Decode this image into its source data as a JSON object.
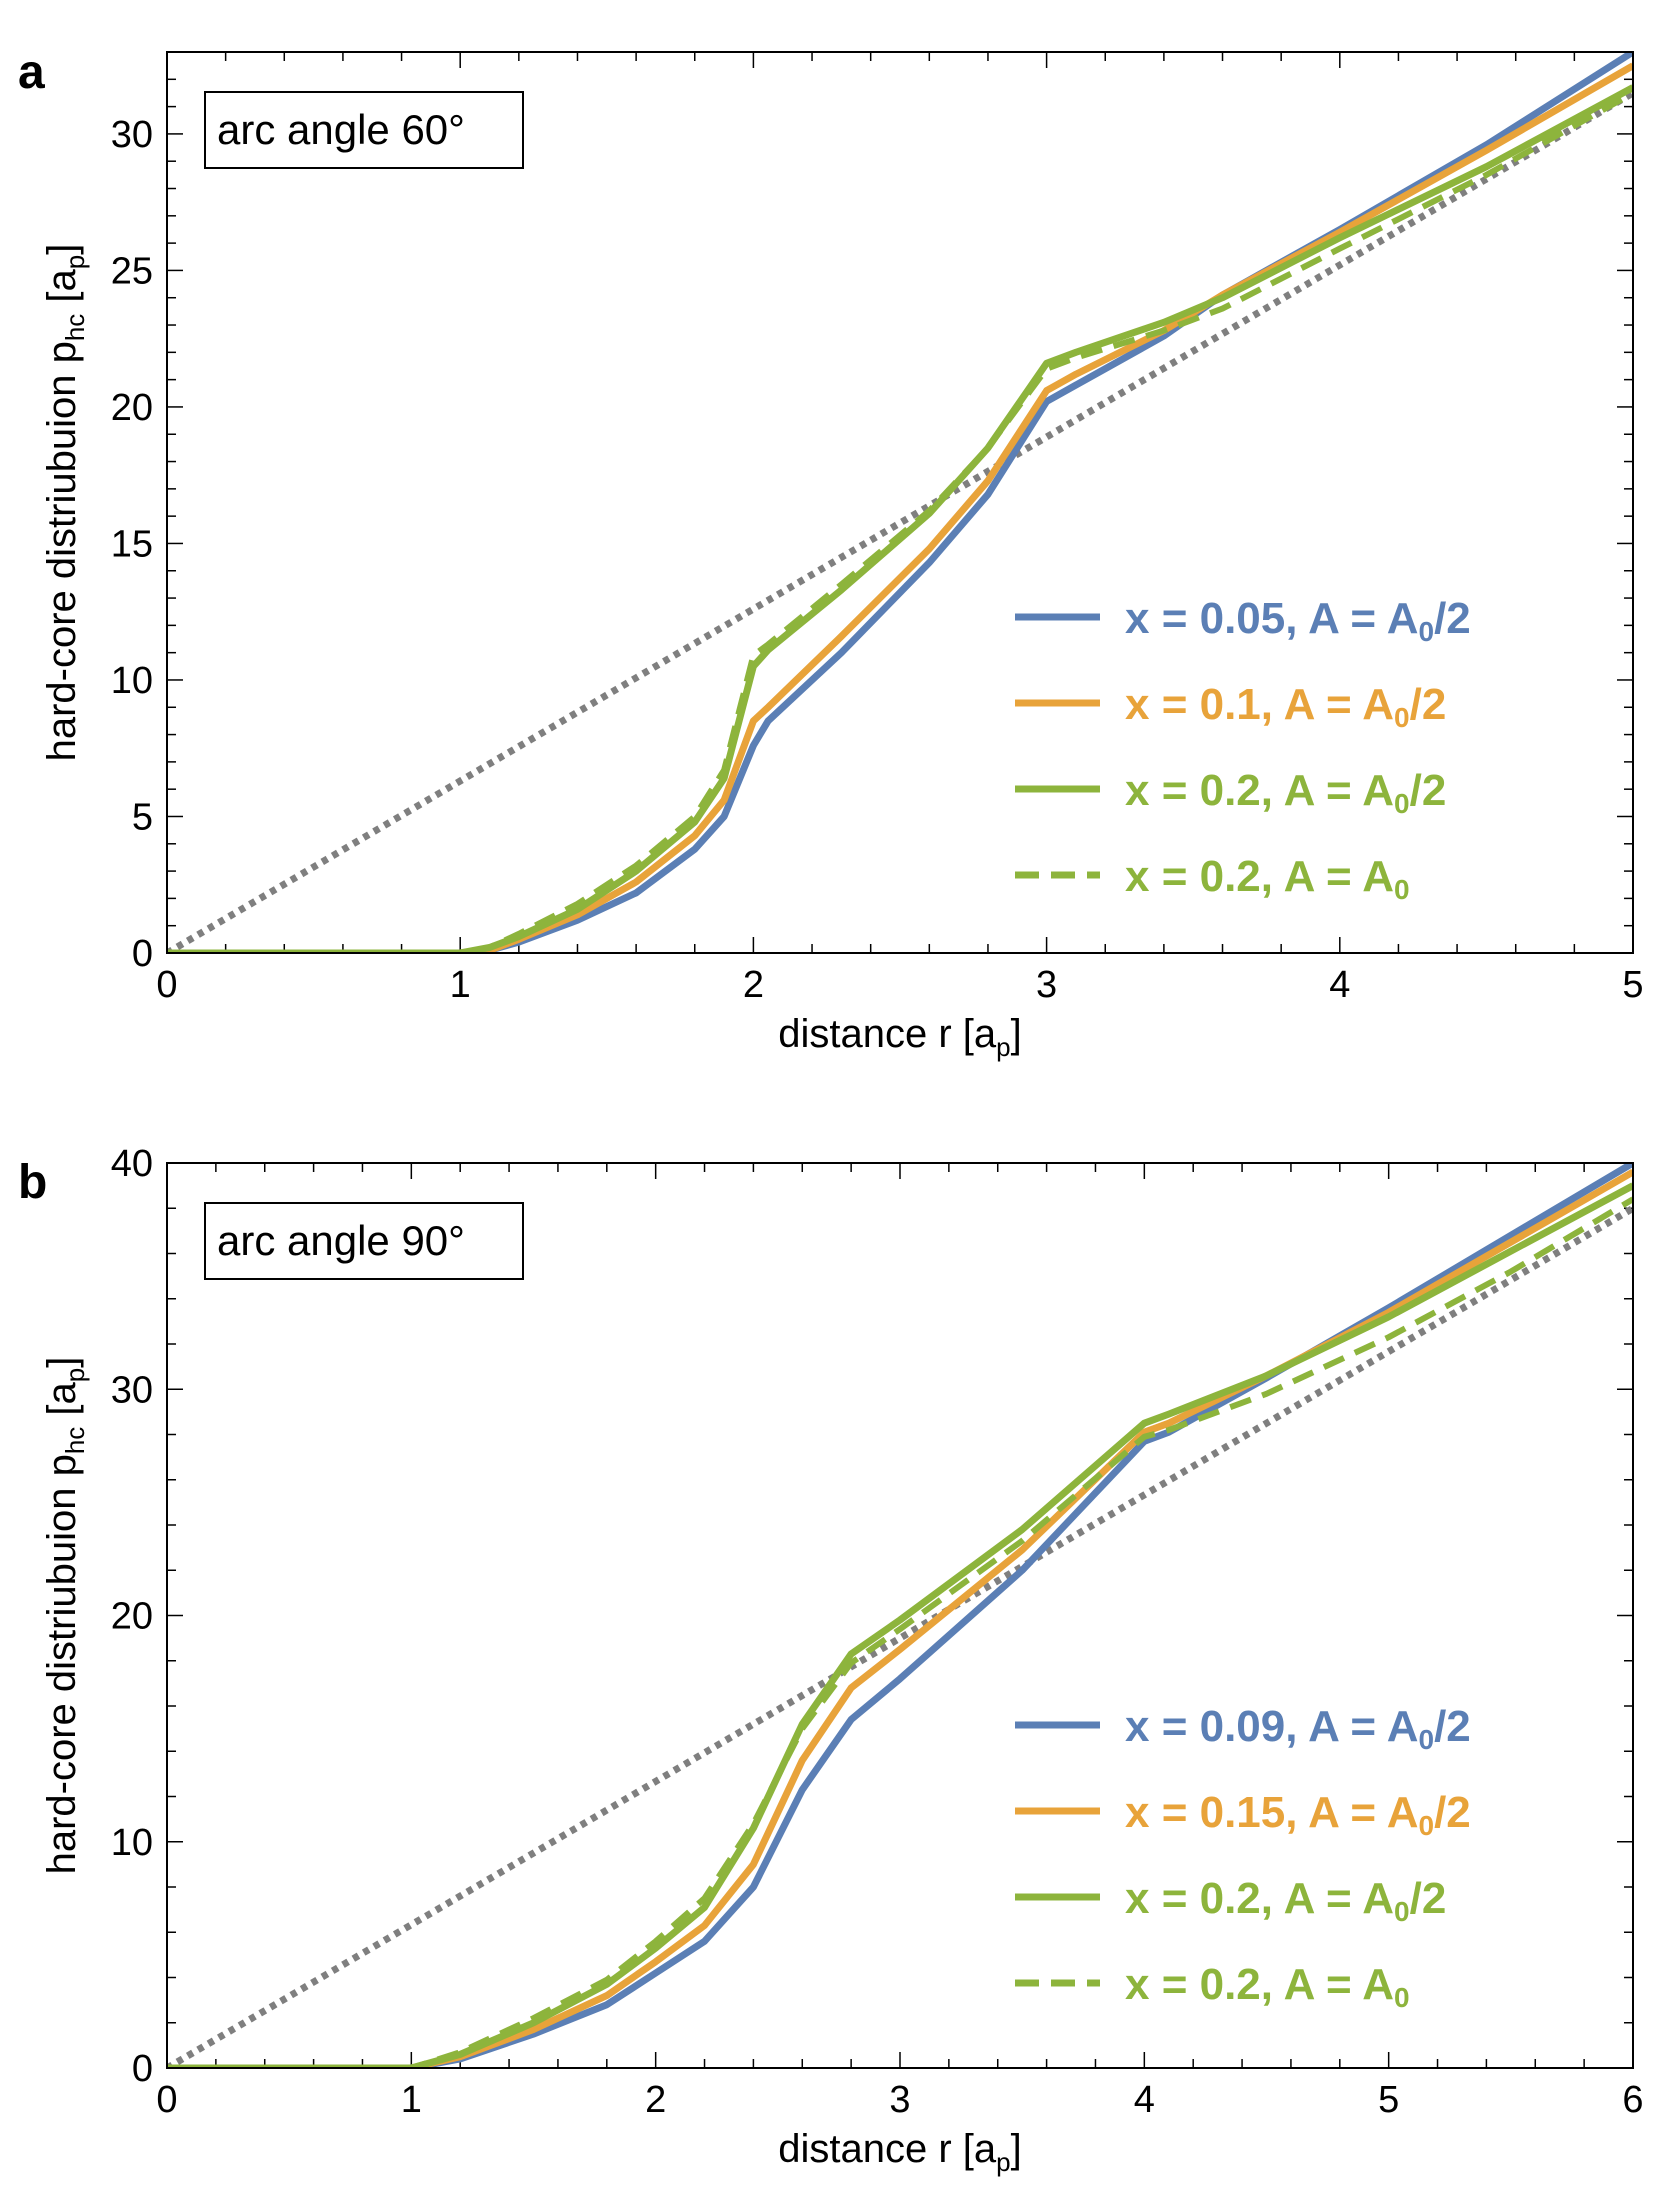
{
  "colors": {
    "blue": "#5b7fb5",
    "orange": "#e8a33a",
    "green": "#8db43c",
    "gray": "#7f7f7f",
    "axis": "#000000"
  },
  "chart_data": [
    {
      "type": "line",
      "panel_letter": "a",
      "annotation": "arc angle 60°",
      "xlabel": "distance r  [a_p]",
      "ylabel": "hard-core distriubuion p_hc  [a_p]",
      "xlim": [
        0,
        5
      ],
      "ylim": [
        0,
        33
      ],
      "xticks": [
        0,
        1,
        2,
        3,
        4,
        5
      ],
      "yticks": [
        0,
        5,
        10,
        15,
        20,
        25,
        30
      ],
      "grid": false,
      "legend_position": "lower-right",
      "series": [
        {
          "name": "x = 0.05, A = A0/2",
          "color": "blue",
          "style": "solid",
          "points": [
            [
              0,
              0
            ],
            [
              1,
              0
            ],
            [
              1.1,
              0.1
            ],
            [
              1.2,
              0.4
            ],
            [
              1.4,
              1.2
            ],
            [
              1.6,
              2.2
            ],
            [
              1.8,
              3.8
            ],
            [
              1.9,
              5.0
            ],
            [
              2.0,
              7.6
            ],
            [
              2.05,
              8.5
            ],
            [
              2.3,
              11.0
            ],
            [
              2.6,
              14.3
            ],
            [
              2.8,
              16.8
            ],
            [
              3.0,
              20.2
            ],
            [
              3.1,
              20.8
            ],
            [
              3.4,
              22.6
            ],
            [
              3.6,
              24.1
            ],
            [
              4.0,
              26.5
            ],
            [
              4.5,
              29.6
            ],
            [
              5.0,
              33.0
            ]
          ]
        },
        {
          "name": "x = 0.1, A = A0/2",
          "color": "orange",
          "style": "solid",
          "points": [
            [
              0,
              0
            ],
            [
              1,
              0
            ],
            [
              1.1,
              0.1
            ],
            [
              1.2,
              0.5
            ],
            [
              1.4,
              1.4
            ],
            [
              1.6,
              2.6
            ],
            [
              1.8,
              4.3
            ],
            [
              1.9,
              5.6
            ],
            [
              2.0,
              8.5
            ],
            [
              2.05,
              9.0
            ],
            [
              2.3,
              11.6
            ],
            [
              2.6,
              14.8
            ],
            [
              2.8,
              17.3
            ],
            [
              3.0,
              20.6
            ],
            [
              3.1,
              21.2
            ],
            [
              3.4,
              22.8
            ],
            [
              3.6,
              24.1
            ],
            [
              4.0,
              26.4
            ],
            [
              4.5,
              29.4
            ],
            [
              5.0,
              32.5
            ]
          ]
        },
        {
          "name": "x = 0.2, A = A0/2",
          "color": "green",
          "style": "solid",
          "points": [
            [
              0,
              0
            ],
            [
              1,
              0
            ],
            [
              1.1,
              0.2
            ],
            [
              1.2,
              0.6
            ],
            [
              1.4,
              1.6
            ],
            [
              1.6,
              3.0
            ],
            [
              1.8,
              4.8
            ],
            [
              1.9,
              6.4
            ],
            [
              2.0,
              10.5
            ],
            [
              2.05,
              11.1
            ],
            [
              2.3,
              13.3
            ],
            [
              2.6,
              16.1
            ],
            [
              2.8,
              18.5
            ],
            [
              3.0,
              21.6
            ],
            [
              3.1,
              22.0
            ],
            [
              3.4,
              23.1
            ],
            [
              3.6,
              24.0
            ],
            [
              4.0,
              26.2
            ],
            [
              4.5,
              28.8
            ],
            [
              5.0,
              31.7
            ]
          ]
        },
        {
          "name": "x = 0.2, A = A0",
          "color": "green",
          "style": "dashed",
          "points": [
            [
              0,
              0
            ],
            [
              1,
              0
            ],
            [
              1.1,
              0.2
            ],
            [
              1.2,
              0.7
            ],
            [
              1.4,
              1.8
            ],
            [
              1.6,
              3.2
            ],
            [
              1.8,
              5.0
            ],
            [
              1.9,
              6.7
            ],
            [
              2.0,
              10.9
            ],
            [
              2.05,
              11.3
            ],
            [
              2.3,
              13.5
            ],
            [
              2.6,
              16.2
            ],
            [
              2.8,
              18.5
            ],
            [
              3.0,
              21.4
            ],
            [
              3.1,
              21.8
            ],
            [
              3.4,
              22.8
            ],
            [
              3.6,
              23.6
            ],
            [
              4.0,
              25.8
            ],
            [
              4.5,
              28.5
            ],
            [
              5.0,
              31.5
            ]
          ]
        },
        {
          "name": "",
          "color": "gray",
          "style": "dotted",
          "points": [
            [
              0,
              0
            ],
            [
              5,
              31.5
            ]
          ]
        }
      ],
      "legend": [
        {
          "label": "x = 0.05, A = A₀/2",
          "color": "blue",
          "style": "solid"
        },
        {
          "label": "x = 0.1, A = A₀/2",
          "color": "orange",
          "style": "solid"
        },
        {
          "label": "x = 0.2, A = A₀/2",
          "color": "green",
          "style": "solid"
        },
        {
          "label": "x = 0.2, A = A₀",
          "color": "green",
          "style": "dashed"
        }
      ]
    },
    {
      "type": "line",
      "panel_letter": "b",
      "annotation": "arc angle 90°",
      "xlabel": "distance r  [a_p]",
      "ylabel": "hard-core distriubuion p_hc  [a_p]",
      "xlim": [
        0,
        6
      ],
      "ylim": [
        0,
        40
      ],
      "xticks": [
        0,
        1,
        2,
        3,
        4,
        5,
        6
      ],
      "yticks": [
        0,
        10,
        20,
        30,
        40
      ],
      "grid": false,
      "legend_position": "lower-right",
      "series": [
        {
          "name": "x = 0.09, A = A0/2",
          "color": "blue",
          "style": "solid",
          "points": [
            [
              0,
              0
            ],
            [
              1,
              0
            ],
            [
              1.2,
              0.4
            ],
            [
              1.5,
              1.5
            ],
            [
              1.8,
              2.8
            ],
            [
              2.0,
              4.2
            ],
            [
              2.2,
              5.6
            ],
            [
              2.4,
              8.0
            ],
            [
              2.6,
              12.3
            ],
            [
              2.8,
              15.4
            ],
            [
              3.0,
              17.2
            ],
            [
              3.5,
              22.0
            ],
            [
              4.0,
              27.7
            ],
            [
              4.1,
              28.1
            ],
            [
              4.5,
              30.5
            ],
            [
              5.0,
              33.6
            ],
            [
              5.5,
              36.8
            ],
            [
              6.0,
              40.0
            ]
          ]
        },
        {
          "name": "x = 0.15, A = A0/2",
          "color": "orange",
          "style": "solid",
          "points": [
            [
              0,
              0
            ],
            [
              1,
              0
            ],
            [
              1.2,
              0.5
            ],
            [
              1.5,
              1.7
            ],
            [
              1.8,
              3.2
            ],
            [
              2.0,
              4.7
            ],
            [
              2.2,
              6.3
            ],
            [
              2.4,
              9.0
            ],
            [
              2.6,
              13.6
            ],
            [
              2.8,
              16.8
            ],
            [
              3.0,
              18.5
            ],
            [
              3.5,
              22.9
            ],
            [
              4.0,
              28.1
            ],
            [
              4.1,
              28.5
            ],
            [
              4.5,
              30.6
            ],
            [
              5.0,
              33.4
            ],
            [
              5.5,
              36.5
            ],
            [
              6.0,
              39.6
            ]
          ]
        },
        {
          "name": "x = 0.2, A = A0/2",
          "color": "green",
          "style": "solid",
          "points": [
            [
              0,
              0
            ],
            [
              1,
              0
            ],
            [
              1.2,
              0.6
            ],
            [
              1.5,
              2.0
            ],
            [
              1.8,
              3.7
            ],
            [
              2.0,
              5.3
            ],
            [
              2.2,
              7.1
            ],
            [
              2.4,
              10.6
            ],
            [
              2.6,
              15.2
            ],
            [
              2.8,
              18.3
            ],
            [
              3.0,
              19.8
            ],
            [
              3.5,
              23.8
            ],
            [
              4.0,
              28.5
            ],
            [
              4.1,
              28.9
            ],
            [
              4.5,
              30.6
            ],
            [
              5.0,
              33.2
            ],
            [
              5.5,
              36.1
            ],
            [
              6.0,
              39.0
            ]
          ]
        },
        {
          "name": "x = 0.2, A = A0",
          "color": "green",
          "style": "dashed",
          "points": [
            [
              0,
              0
            ],
            [
              1,
              0
            ],
            [
              1.2,
              0.7
            ],
            [
              1.5,
              2.2
            ],
            [
              1.8,
              3.9
            ],
            [
              2.0,
              5.6
            ],
            [
              2.2,
              7.5
            ],
            [
              2.4,
              10.8
            ],
            [
              2.6,
              15.0
            ],
            [
              2.8,
              17.9
            ],
            [
              3.0,
              19.4
            ],
            [
              3.5,
              23.3
            ],
            [
              4.0,
              27.9
            ],
            [
              4.1,
              28.2
            ],
            [
              4.5,
              29.8
            ],
            [
              5.0,
              32.3
            ],
            [
              5.5,
              35.2
            ],
            [
              6.0,
              38.4
            ]
          ]
        },
        {
          "name": "",
          "color": "gray",
          "style": "dotted",
          "points": [
            [
              0,
              0
            ],
            [
              6,
              38.0
            ]
          ]
        }
      ],
      "legend": [
        {
          "label": "x = 0.09, A = A₀/2",
          "color": "blue",
          "style": "solid"
        },
        {
          "label": "x = 0.15, A = A₀/2",
          "color": "orange",
          "style": "solid"
        },
        {
          "label": "x = 0.2, A = A₀/2",
          "color": "green",
          "style": "solid"
        },
        {
          "label": "x = 0.2, A = A₀",
          "color": "green",
          "style": "dashed"
        }
      ]
    }
  ]
}
